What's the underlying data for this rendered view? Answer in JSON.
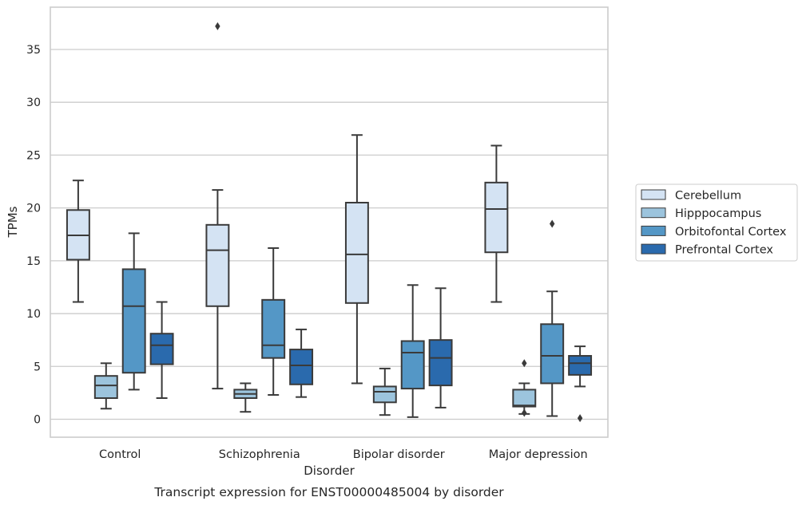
{
  "chart_data": {
    "type": "boxplot",
    "caption": "Transcript expression for ENST00000485004 by disorder",
    "xlabel": "Disorder",
    "ylabel": "TPMs",
    "ylim": [
      -1.7,
      39
    ],
    "yticks": [
      0,
      5,
      10,
      15,
      20,
      25,
      30,
      35
    ],
    "grid": true,
    "legend_position": "right",
    "categories": [
      "Control",
      "Schizophrenia",
      "Bipolar disorder",
      "Major depression"
    ],
    "series": [
      {
        "name": "Cerebellum",
        "color": "#d4e3f3",
        "boxes": [
          {
            "whislo": 11.1,
            "q1": 15.1,
            "med": 17.4,
            "q3": 19.8,
            "whishi": 22.6,
            "fliers": []
          },
          {
            "whislo": 2.9,
            "q1": 10.7,
            "med": 16.0,
            "q3": 18.4,
            "whishi": 21.7,
            "fliers": [
              37.2
            ]
          },
          {
            "whislo": 3.4,
            "q1": 11.0,
            "med": 15.6,
            "q3": 20.5,
            "whishi": 26.9,
            "fliers": []
          },
          {
            "whislo": 11.1,
            "q1": 15.8,
            "med": 19.9,
            "q3": 22.4,
            "whishi": 25.9,
            "fliers": []
          }
        ]
      },
      {
        "name": "Hipppocampus",
        "color": "#9cc4dd",
        "boxes": [
          {
            "whislo": 1.0,
            "q1": 2.0,
            "med": 3.2,
            "q3": 4.1,
            "whishi": 5.3,
            "fliers": []
          },
          {
            "whislo": 0.7,
            "q1": 2.0,
            "med": 2.4,
            "q3": 2.8,
            "whishi": 3.4,
            "fliers": []
          },
          {
            "whislo": 0.4,
            "q1": 1.6,
            "med": 2.6,
            "q3": 3.1,
            "whishi": 4.8,
            "fliers": []
          },
          {
            "whislo": 0.5,
            "q1": 1.2,
            "med": 1.3,
            "q3": 2.8,
            "whishi": 3.4,
            "fliers": [
              0.6,
              5.3
            ]
          }
        ]
      },
      {
        "name": "Orbitofontal Cortex",
        "color": "#5497c6",
        "boxes": [
          {
            "whislo": 2.8,
            "q1": 4.4,
            "med": 10.7,
            "q3": 14.2,
            "whishi": 17.6,
            "fliers": []
          },
          {
            "whislo": 2.3,
            "q1": 5.8,
            "med": 7.0,
            "q3": 11.3,
            "whishi": 16.2,
            "fliers": []
          },
          {
            "whislo": 0.2,
            "q1": 2.9,
            "med": 6.3,
            "q3": 7.4,
            "whishi": 12.7,
            "fliers": []
          },
          {
            "whislo": 0.3,
            "q1": 3.4,
            "med": 6.0,
            "q3": 9.0,
            "whishi": 12.1,
            "fliers": [
              18.5
            ]
          }
        ]
      },
      {
        "name": "Prefrontal Cortex",
        "color": "#2a6aad",
        "boxes": [
          {
            "whislo": 2.0,
            "q1": 5.2,
            "med": 7.0,
            "q3": 8.1,
            "whishi": 11.1,
            "fliers": []
          },
          {
            "whislo": 2.1,
            "q1": 3.3,
            "med": 5.1,
            "q3": 6.6,
            "whishi": 8.5,
            "fliers": []
          },
          {
            "whislo": 1.1,
            "q1": 3.2,
            "med": 5.8,
            "q3": 7.5,
            "whishi": 12.4,
            "fliers": []
          },
          {
            "whislo": 3.1,
            "q1": 4.2,
            "med": 5.3,
            "q3": 6.0,
            "whishi": 6.9,
            "fliers": [
              0.1
            ]
          }
        ]
      }
    ]
  },
  "style": {
    "line_color": "#3a3a3a",
    "grid_color": "#cccccc",
    "frame_color": "#cccccc"
  }
}
